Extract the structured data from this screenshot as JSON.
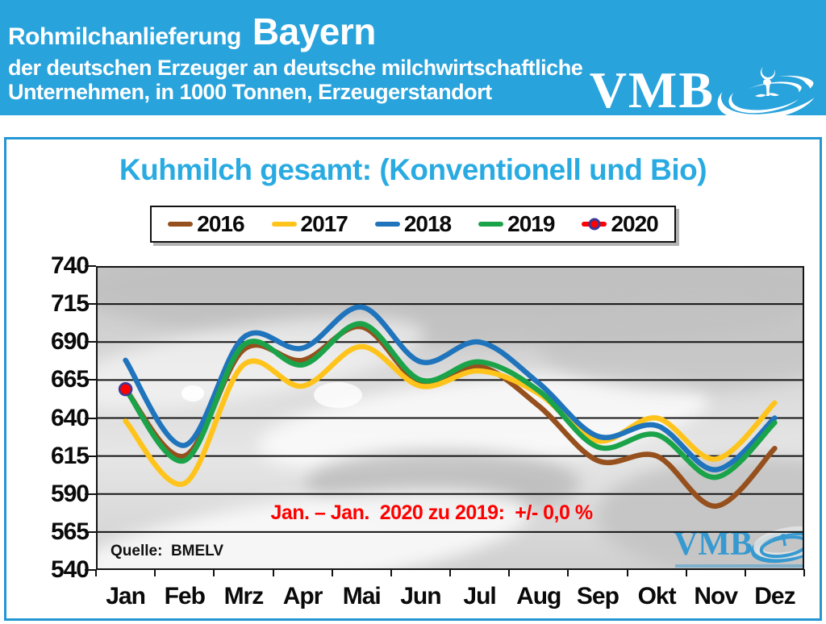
{
  "header": {
    "title_prefix": "Rohmilchanlieferung",
    "title_region": "Bayern",
    "subtitle_line1": "der deutschen Erzeuger an deutsche milchwirtschaftliche",
    "subtitle_line2": "Unternehmen, in 1000 Tonnen, Erzeugerstandort",
    "logo_text": "VMB",
    "banner_color": "#29A3DB"
  },
  "chart": {
    "title": "Kuhmilch gesamt: (Konventionell und Bio)",
    "title_color": "#29ABE2",
    "annotation": "Jan. – Jan.  2020 zu 2019:  +/- 0,0 %",
    "annotation_color": "#FF0000",
    "source": "Quelle:  BMELV",
    "watermark_text": "VMB",
    "watermark_color": "#2A96D2"
  },
  "chart_data": {
    "type": "line",
    "title": "Kuhmilch gesamt: (Konventionell und Bio)",
    "xlabel": "",
    "ylabel": "1000 Tonnen",
    "categories": [
      "Jan",
      "Feb",
      "Mrz",
      "Apr",
      "Mai",
      "Jun",
      "Jul",
      "Aug",
      "Sep",
      "Okt",
      "Nov",
      "Dez"
    ],
    "ylim": [
      540,
      740
    ],
    "yticks": [
      740,
      715,
      690,
      665,
      640,
      615,
      590,
      565,
      540
    ],
    "grid": "horizontal",
    "legend_position": "top",
    "line_smoothing": true,
    "series": [
      {
        "name": "2016",
        "color": "#96501D",
        "marker": false,
        "values": [
          659,
          615,
          685,
          678,
          700,
          663,
          674,
          648,
          612,
          615,
          582,
          620
        ]
      },
      {
        "name": "2017",
        "color": "#FFC41C",
        "marker": false,
        "values": [
          638,
          597,
          675,
          661,
          687,
          661,
          671,
          656,
          625,
          640,
          613,
          650
        ]
      },
      {
        "name": "2018",
        "color": "#1F74BC",
        "marker": false,
        "values": [
          678,
          622,
          693,
          686,
          713,
          677,
          690,
          663,
          628,
          635,
          606,
          640
        ]
      },
      {
        "name": "2019",
        "color": "#1BA34A",
        "marker": false,
        "values": [
          659,
          612,
          688,
          675,
          702,
          665,
          677,
          658,
          621,
          629,
          601,
          637
        ]
      },
      {
        "name": "2020",
        "color": "#FF0000",
        "marker": true,
        "marker_ring_color": "#3A3A96",
        "values": [
          659,
          null,
          null,
          null,
          null,
          null,
          null,
          null,
          null,
          null,
          null,
          null
        ]
      }
    ]
  }
}
